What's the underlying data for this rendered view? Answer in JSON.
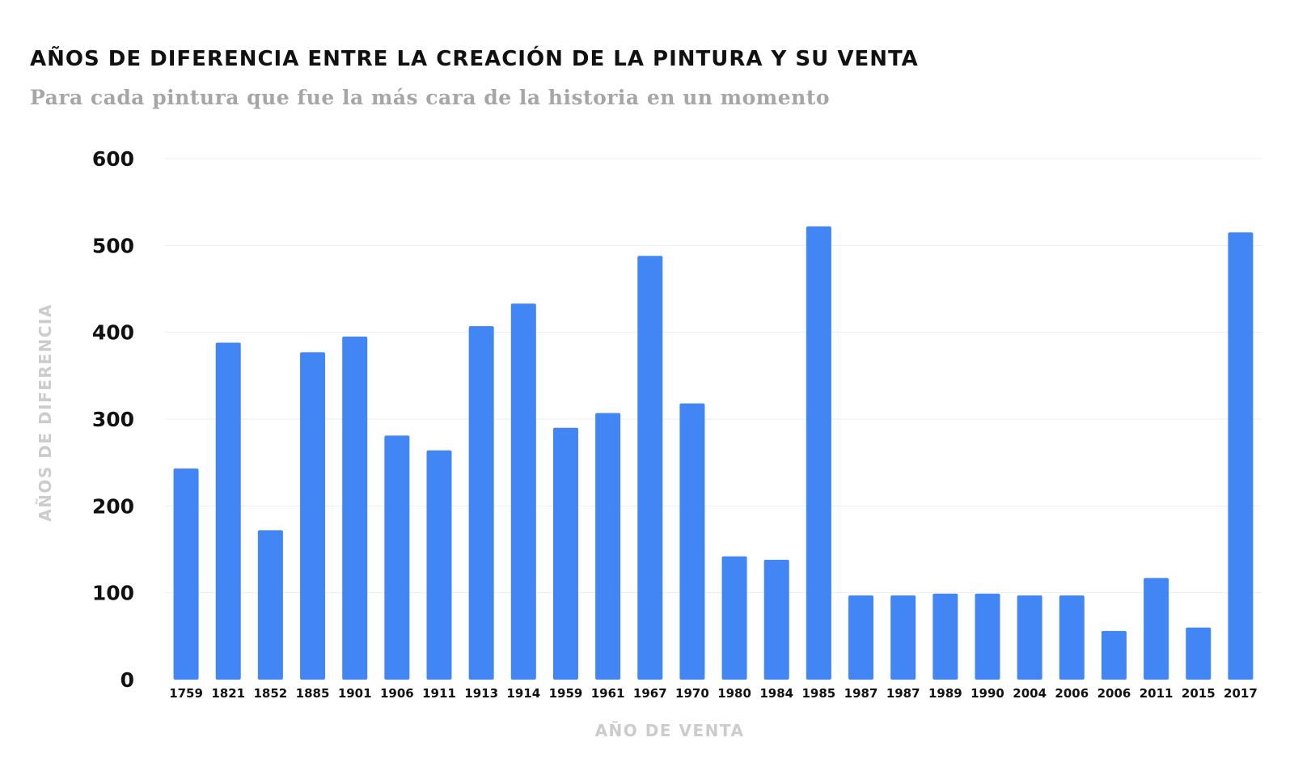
{
  "chart_data": {
    "type": "bar",
    "title": "AÑOS DE DIFERENCIA ENTRE LA CREACIÓN DE LA PINTURA Y SU VENTA",
    "subtitle": "Para cada pintura que fue la más cara de la historia en un momento",
    "xlabel": "AÑO DE VENTA",
    "ylabel": "AÑOS DE DIFERENCIA",
    "ylim": [
      0,
      600
    ],
    "yticks": [
      0,
      100,
      200,
      300,
      400,
      500,
      600
    ],
    "categories": [
      "1759",
      "1821",
      "1852",
      "1885",
      "1901",
      "1906",
      "1911",
      "1913",
      "1914",
      "1959",
      "1961",
      "1967",
      "1970",
      "1980",
      "1984",
      "1985",
      "1987",
      "1987",
      "1989",
      "1990",
      "2004",
      "2006",
      "2006",
      "2011",
      "2015",
      "2017"
    ],
    "values": [
      243,
      388,
      172,
      377,
      395,
      281,
      264,
      407,
      433,
      290,
      307,
      488,
      318,
      142,
      138,
      522,
      97,
      97,
      99,
      99,
      97,
      97,
      56,
      117,
      60,
      515
    ],
    "grid": true,
    "legend": "none",
    "bar_color": "#4285f4"
  }
}
